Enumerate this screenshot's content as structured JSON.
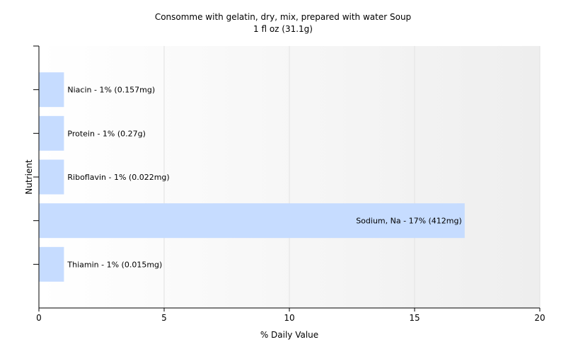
{
  "chart_data": {
    "type": "bar",
    "orientation": "horizontal",
    "title": "Consomme with gelatin, dry, mix, prepared with water Soup",
    "subtitle": "1 fl oz (31.1g)",
    "xlabel": "% Daily Value",
    "ylabel": "Nutrient",
    "xlim": [
      0,
      20
    ],
    "xticks": [
      0,
      5,
      10,
      15,
      20
    ],
    "grid": true,
    "legend": "none",
    "bar_color": "#c6dcff",
    "categories": [
      "Niacin",
      "Protein",
      "Riboflavin",
      "Sodium, Na",
      "Thiamin"
    ],
    "values": [
      1,
      1,
      1,
      17,
      1
    ],
    "labels": [
      "Niacin - 1% (0.157mg)",
      "Protein - 1% (0.27g)",
      "Riboflavin - 1% (0.022mg)",
      "Sodium, Na - 17% (412mg)",
      "Thiamin - 1% (0.015mg)"
    ]
  }
}
